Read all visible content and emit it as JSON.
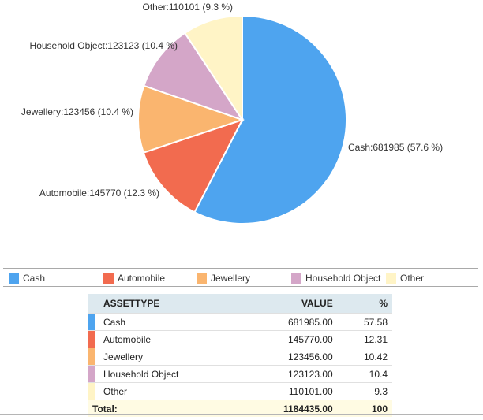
{
  "chart_data": {
    "type": "pie",
    "slices": [
      {
        "name": "Cash",
        "value": 681985,
        "percent": 57.6,
        "color": "#4ea4ef",
        "label": "Cash:681985 (57.6 %)"
      },
      {
        "name": "Automobile",
        "value": 145770,
        "percent": 12.3,
        "color": "#f26b4f",
        "label": "Automobile:145770 (12.3 %)"
      },
      {
        "name": "Jewellery",
        "value": 123456,
        "percent": 10.4,
        "color": "#fab56f",
        "label": "Jewellery:123456 (10.4 %)"
      },
      {
        "name": "Household Object",
        "value": 123123,
        "percent": 10.4,
        "color": "#d4a6c8",
        "label": "Household Object:123123 (10.4 %)"
      },
      {
        "name": "Other",
        "value": 110101,
        "percent": 9.3,
        "color": "#fff4c6",
        "label": "Other:110101 (9.3 %)"
      }
    ],
    "legend": [
      "Cash",
      "Automobile",
      "Jewellery",
      "Household Object",
      "Other"
    ],
    "legend_position": "bottom"
  },
  "table": {
    "headers": {
      "type": "ASSETTYPE",
      "value": "VALUE",
      "percent": "%"
    },
    "rows": [
      {
        "type": "Cash",
        "value": "681985.00",
        "percent": "57.58"
      },
      {
        "type": "Automobile",
        "value": "145770.00",
        "percent": "12.31"
      },
      {
        "type": "Jewellery",
        "value": "123456.00",
        "percent": "10.42"
      },
      {
        "type": "Household Object",
        "value": "123123.00",
        "percent": "10.4"
      },
      {
        "type": "Other",
        "value": "110101.00",
        "percent": "9.3"
      }
    ],
    "total": {
      "label": "Total:",
      "value": "1184435.00",
      "percent": "100"
    }
  }
}
